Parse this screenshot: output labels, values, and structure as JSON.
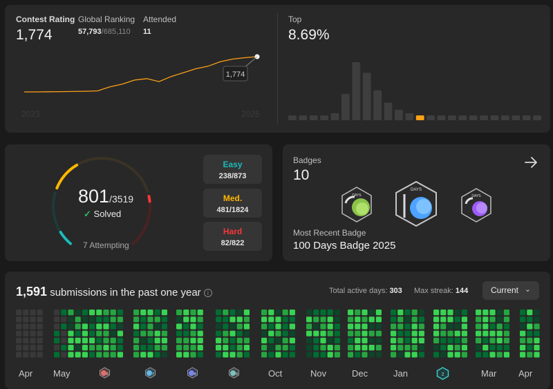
{
  "rating": {
    "label": "Contest Rating",
    "value": "1,774",
    "global_label": "Global Ranking",
    "global_rank": "57,793",
    "global_total": "/685,110",
    "attended_label": "Attended",
    "attended": "11",
    "tooltip": "1,774",
    "year_start": "2023",
    "year_end": "2025",
    "top_label": "Top",
    "top_value": "8.69%",
    "histogram": [
      1,
      1,
      1,
      1,
      4,
      15,
      33,
      27,
      17,
      10,
      6,
      4,
      2,
      2,
      2,
      1,
      1,
      1,
      1,
      1,
      1,
      1,
      1,
      1
    ],
    "highlight_index": 12,
    "rating_series": [
      1500,
      1500,
      1501,
      1502,
      1503,
      1505,
      1508,
      1540,
      1560,
      1592,
      1603,
      1580,
      1620,
      1650,
      1680,
      1700,
      1735,
      1755,
      1766,
      1774
    ]
  },
  "solved": {
    "count": "801",
    "total": "/3519",
    "solved_label": "Solved",
    "attempting": "7 Attempting",
    "easy_label": "Easy",
    "easy_value": "238/873",
    "med_label": "Med.",
    "med_value": "481/1824",
    "hard_label": "Hard",
    "hard_value": "82/822"
  },
  "badges": {
    "label": "Badges",
    "count": "10",
    "recent_label": "Most Recent Badge",
    "recent_name": "100 Days Badge 2025",
    "badge_50_caption": "DAYS",
    "badge_100_caption": "DAYS",
    "badge_200_caption": "DAYS"
  },
  "submissions": {
    "count": "1,591",
    "text": "submissions in the past one year",
    "active_label": "Total active days:",
    "active_value": "303",
    "streak_label": "Max streak:",
    "streak_value": "144",
    "dropdown": "Current",
    "months": [
      "Apr",
      "May",
      "Oct",
      "Nov",
      "Dec",
      "Jan",
      "Mar",
      "Apr"
    ],
    "month_badge_labels": [
      "6",
      "7",
      "8",
      "9",
      "2"
    ]
  },
  "colors": {
    "easy": "#1cbaba",
    "medium": "#ffb700",
    "hard": "#f63737",
    "accent_line": "#ffa116",
    "heat_levels": [
      "#393939",
      "#0e4429",
      "#006d32",
      "#26a641",
      "#39d353"
    ]
  }
}
